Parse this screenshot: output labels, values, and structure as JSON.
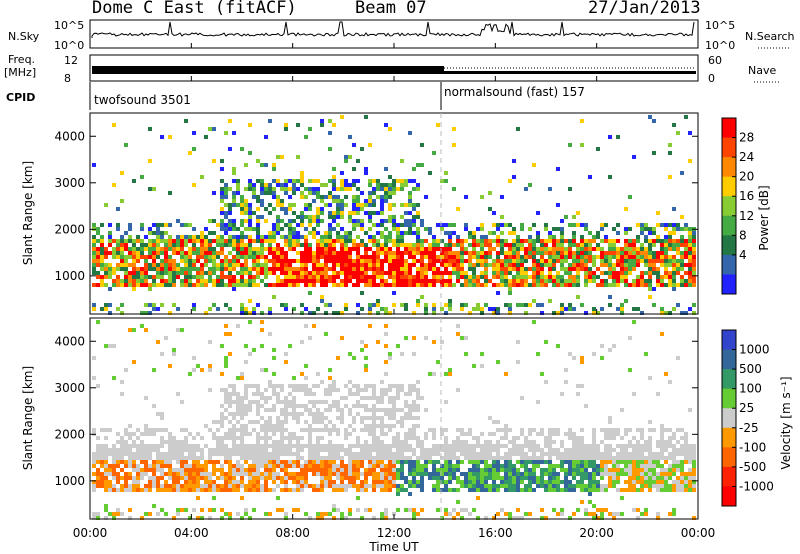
{
  "header": {
    "station_title": "Dome C East (fitACF)",
    "beam_label": "Beam 07",
    "date_label": "27/Jan/2013"
  },
  "strips": {
    "nsky_label": "N.Sky",
    "nsky_ticks": [
      "10^5",
      "10^0"
    ],
    "nsearch_label": "N.Search",
    "nsearch_ticks": [
      "10^5",
      "10^0"
    ],
    "freq_label": "Freq.",
    "freq_unit": "[MHz]",
    "freq_ticks": [
      "12",
      "8"
    ],
    "nave_label": "Nave",
    "nave_ticks": [
      "60",
      "0"
    ],
    "cpid_label": "CPID",
    "cpid_program_1": "twofsound 3501",
    "cpid_program_2": "normalsound (fast) 157"
  },
  "panels": {
    "ylabel": "Slant Range [km]",
    "yticks": [
      "4000",
      "3000",
      "2000",
      "1000"
    ],
    "xticks": [
      "00:00",
      "04:00",
      "08:00",
      "12:00",
      "16:00",
      "20:00",
      "00:00"
    ],
    "xlabel": "Time UT"
  },
  "power_scale": {
    "label": "Power [dB]",
    "ticks": [
      "28",
      "24",
      "20",
      "16",
      "12",
      "8",
      "4"
    ],
    "colors": [
      "#ff0000",
      "#ff4400",
      "#ff8800",
      "#ffcc00",
      "#88cc33",
      "#44aa44",
      "#227744",
      "#3366aa",
      "#2222ff"
    ]
  },
  "velocity_scale": {
    "label": "Velocity [m s⁻¹]",
    "ticks": [
      "1000",
      "500",
      "100",
      "25",
      "-25",
      "-100",
      "-500",
      "-1000"
    ],
    "colors": [
      "#3344cc",
      "#336699",
      "#339966",
      "#66cc33",
      "#cccccc",
      "#ff9900",
      "#ff6600",
      "#ff2200",
      "#ff0000"
    ]
  },
  "chart_data": [
    {
      "type": "heatmap",
      "title": "Power [dB]",
      "xlabel": "Time UT",
      "ylabel": "Slant Range [km]",
      "xlim": [
        "00:00",
        "24:00"
      ],
      "ylim": [
        180,
        4500
      ],
      "colorbar": {
        "label": "Power [dB]",
        "range": [
          0,
          32
        ],
        "ticks": [
          4,
          8,
          12,
          16,
          20,
          24,
          28
        ]
      },
      "notes": "Scatter between ~800 and ~1800 km through the day; strongest echoes (red, >24 dB) ~08:00–14:00 near 900–1500 km; patchy echoes up to ~3000 km 06:00–12:00."
    },
    {
      "type": "heatmap",
      "title": "Velocity [m s⁻¹]",
      "xlabel": "Time UT",
      "ylabel": "Slant Range [km]",
      "xlim": [
        "00:00",
        "24:00"
      ],
      "ylim": [
        180,
        4500
      ],
      "colorbar": {
        "label": "Velocity [m s⁻¹]",
        "ticks": [
          -1000,
          -500,
          -100,
          -25,
          25,
          100,
          500,
          1000
        ]
      },
      "notes": "Low velocities (grey, |v|<25) dominate 1500–3000 km; negative velocities (orange) ~04:00–12:00 near 1000–1500 km; positive velocities (green/blue) ~12:00–20:00 near 800–1600 km."
    }
  ]
}
